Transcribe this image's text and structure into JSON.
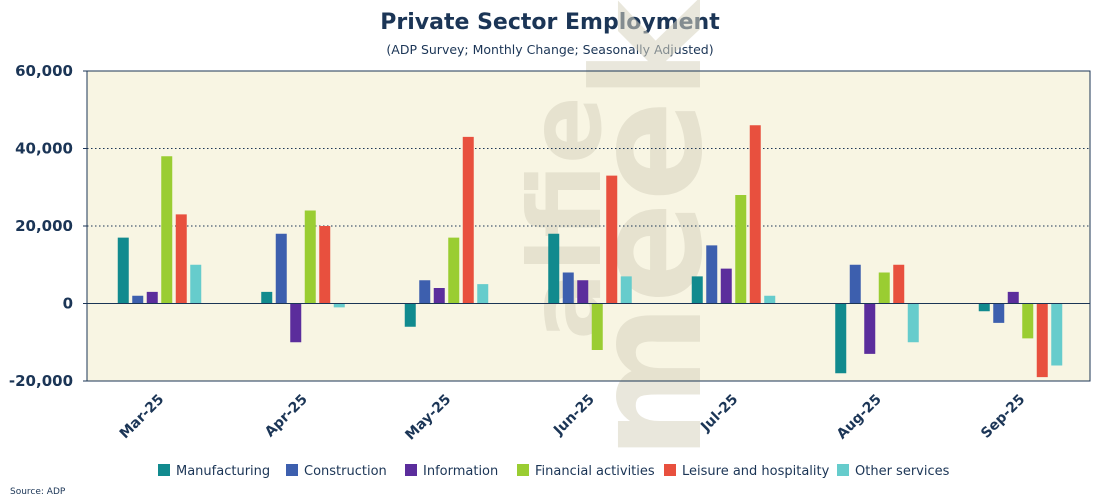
{
  "chart_data": {
    "type": "bar",
    "title": "Private Sector Employment",
    "subtitle": "(ADP Survey; Monthly Change; Seasonally Adjusted)",
    "xlabel": "",
    "ylabel": "",
    "ylim": [
      -20000,
      60000
    ],
    "yticks": [
      "60,000",
      "40,000",
      "20,000",
      "0",
      "-20,000"
    ],
    "ytick_values": [
      60000,
      40000,
      20000,
      0,
      -20000
    ],
    "gridlines": [
      40000,
      20000
    ],
    "categories": [
      "Mar-25",
      "Apr-25",
      "May-25",
      "Jun-25",
      "Jul-25",
      "Aug-25",
      "Sep-25"
    ],
    "series": [
      {
        "name": "Manufacturing",
        "color": "#118a8e",
        "values": [
          17000,
          3000,
          -6000,
          18000,
          7000,
          -18000,
          -2000
        ]
      },
      {
        "name": "Construction",
        "color": "#3d5fae",
        "values": [
          2000,
          18000,
          6000,
          8000,
          15000,
          10000,
          -5000
        ]
      },
      {
        "name": "Information",
        "color": "#5b2d9c",
        "values": [
          3000,
          -10000,
          4000,
          6000,
          9000,
          -13000,
          3000
        ]
      },
      {
        "name": "Financial activities",
        "color": "#9acd32",
        "values": [
          38000,
          24000,
          17000,
          -12000,
          28000,
          8000,
          -9000
        ]
      },
      {
        "name": "Leisure and hospitality",
        "color": "#e8503e",
        "values": [
          23000,
          20000,
          43000,
          33000,
          46000,
          10000,
          -19000
        ]
      },
      {
        "name": "Other services",
        "color": "#66cccc",
        "values": [
          10000,
          -1000,
          5000,
          7000,
          2000,
          -10000,
          -16000
        ]
      }
    ],
    "legend_position": "bottom",
    "source": "Source: ADP",
    "watermark": [
      "alfie",
      "meek"
    ]
  },
  "colors": {
    "plot_background": "#f8f5e3",
    "text": "#1b3556",
    "axis": "#1b3556"
  }
}
